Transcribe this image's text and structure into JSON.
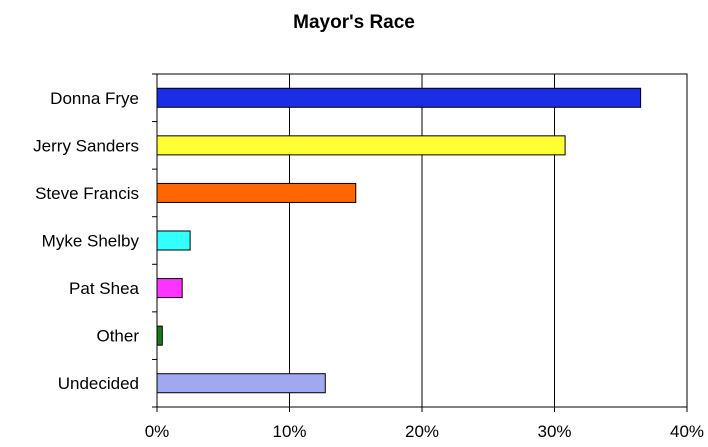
{
  "chart_data": {
    "type": "bar",
    "orientation": "horizontal",
    "title": "Mayor's Race",
    "categories": [
      "Donna Frye",
      "Jerry Sanders",
      "Steve Francis",
      "Myke Shelby",
      "Pat Shea",
      "Other",
      "Undecided"
    ],
    "values": [
      36.5,
      30.8,
      15.0,
      2.5,
      1.9,
      0.4,
      12.7
    ],
    "colors": [
      "#1a2ee6",
      "#ffff33",
      "#ff6600",
      "#33ffff",
      "#ff33ff",
      "#1a7a1a",
      "#a0a8f0"
    ],
    "xlim": [
      0,
      40
    ],
    "xticks": [
      0,
      10,
      20,
      30,
      40
    ],
    "xtick_labels": [
      "0%",
      "10%",
      "20%",
      "30%",
      "40%"
    ],
    "grid": "vertical",
    "legend": "none"
  }
}
